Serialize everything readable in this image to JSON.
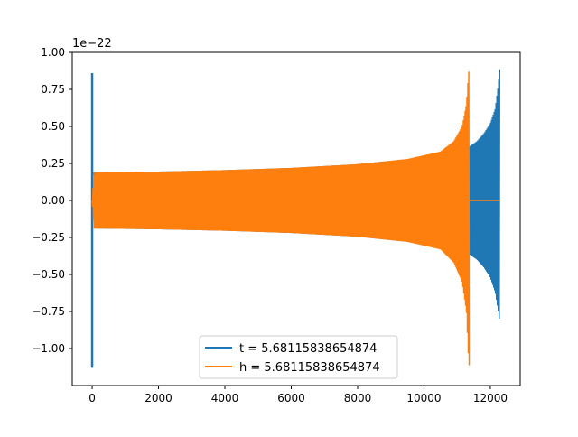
{
  "chart_data": {
    "type": "line",
    "title": "",
    "xlabel": "",
    "ylabel": "",
    "offset_text": "1e−22",
    "xlim": [
      -600,
      12900
    ],
    "ylim": [
      -1.25,
      1.0
    ],
    "xticks": [
      0,
      2000,
      4000,
      6000,
      8000,
      10000,
      12000
    ],
    "xtick_labels": [
      "0",
      "2000",
      "4000",
      "6000",
      "8000",
      "10000",
      "12000"
    ],
    "yticks": [
      -1.0,
      -0.75,
      -0.5,
      -0.25,
      0.0,
      0.25,
      0.5,
      0.75,
      1.0
    ],
    "ytick_labels": [
      "−1.00",
      "−0.75",
      "−0.50",
      "−0.25",
      "0.00",
      "0.25",
      "0.50",
      "0.75",
      "1.00"
    ],
    "grid": false,
    "legend_position": "lower-center",
    "series": [
      {
        "name": "t = 5.68115838654874",
        "color": "#1f77b4",
        "x_range": [
          0,
          12290
        ],
        "spike_at_start": {
          "x": 0,
          "max": 0.86,
          "min": -1.13
        },
        "envelope": {
          "x": [
            60,
            2000,
            4000,
            6000,
            8000,
            10000,
            10800,
            11300,
            11350,
            11600,
            11800,
            12000,
            12150,
            12240,
            12290
          ],
          "upper": [
            0.19,
            0.195,
            0.205,
            0.22,
            0.245,
            0.29,
            0.34,
            0.36,
            0.36,
            0.4,
            0.45,
            0.52,
            0.62,
            0.78,
            0.91
          ],
          "lower": [
            -0.19,
            -0.195,
            -0.205,
            -0.22,
            -0.245,
            -0.29,
            -0.34,
            -0.36,
            -0.36,
            -0.4,
            -0.45,
            -0.52,
            -0.62,
            -0.75,
            -0.84
          ]
        }
      },
      {
        "name": "h = 5.68115838654874",
        "color": "#ff7f0e",
        "x_range": [
          0,
          12290
        ],
        "envelope": {
          "x": [
            0,
            60,
            2000,
            4000,
            6000,
            8000,
            9500,
            10500,
            10900,
            11150,
            11280,
            11340,
            11370
          ],
          "upper": [
            0.0,
            0.19,
            0.195,
            0.205,
            0.22,
            0.245,
            0.28,
            0.33,
            0.4,
            0.5,
            0.65,
            0.85,
            0.91
          ],
          "lower": [
            0.0,
            -0.19,
            -0.195,
            -0.205,
            -0.22,
            -0.245,
            -0.28,
            -0.33,
            -0.42,
            -0.55,
            -0.75,
            -1.05,
            -1.13
          ]
        },
        "flat_segment": {
          "x": [
            11380,
            12290
          ],
          "y": 0.0
        }
      }
    ]
  }
}
